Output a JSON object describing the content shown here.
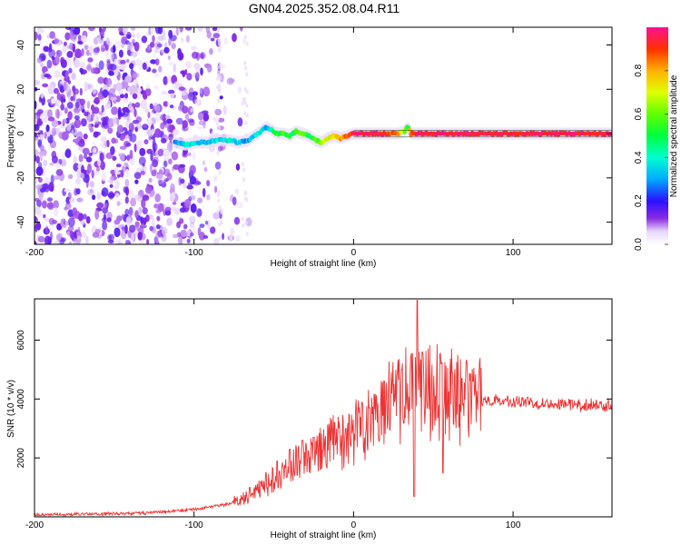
{
  "title": "GN04.2025.352.08.04.R11",
  "chart_data": [
    {
      "type": "heatmap",
      "name": "spectrogram",
      "xlabel": "Height of straight line (km)",
      "ylabel": "Frequency (Hz)",
      "xlim": [
        -200,
        162
      ],
      "ylim": [
        -50,
        48
      ],
      "xticks": [
        -200,
        -100,
        0,
        100
      ],
      "yticks": [
        -40,
        -20,
        0,
        20,
        40
      ],
      "grid": false,
      "colorbar": {
        "label": "Normalized spectral amplitude",
        "range": [
          0,
          1
        ],
        "ticks": [
          0.0,
          0.2,
          0.4,
          0.6,
          0.8
        ],
        "tick_labels": [
          "0.0",
          "0.2",
          "0.4",
          "0.6",
          "0.8"
        ]
      },
      "trace_points": {
        "x": [
          -112,
          -105,
          -98,
          -92,
          -85,
          -78,
          -72,
          -66,
          -62,
          -58,
          -55,
          -52,
          -48,
          -44,
          -40,
          -36,
          -32,
          -28,
          -24,
          -20,
          -16,
          -12,
          -8,
          -4,
          0,
          10,
          20,
          28,
          32,
          34,
          36,
          40,
          50,
          60,
          80,
          100,
          130,
          162
        ],
        "y": [
          -4,
          -5,
          -4,
          -4,
          -3,
          -3,
          -4,
          -3,
          -1,
          1,
          3,
          2,
          0,
          0,
          -1,
          1,
          0,
          -1,
          -3,
          -4,
          -2,
          -1,
          -2,
          -1,
          0,
          0,
          0,
          0,
          1,
          3,
          0,
          0,
          0,
          0,
          0,
          0,
          0,
          0
        ],
        "amplitude": [
          0.25,
          0.4,
          0.35,
          0.3,
          0.35,
          0.4,
          0.35,
          0.3,
          0.35,
          0.4,
          0.3,
          0.4,
          0.5,
          0.55,
          0.5,
          0.55,
          0.6,
          0.5,
          0.55,
          0.6,
          0.7,
          0.75,
          0.8,
          0.85,
          0.95,
          0.95,
          0.95,
          0.85,
          0.6,
          0.5,
          0.9,
          0.95,
          0.95,
          0.95,
          0.95,
          0.95,
          0.95,
          0.95
        ]
      }
    },
    {
      "type": "line",
      "name": "snr",
      "color": "#ee3333",
      "xlabel": "Height of straight line (km)",
      "ylabel": "SNR (10 * v/v)",
      "xlim": [
        -200,
        162
      ],
      "ylim": [
        0,
        7400
      ],
      "xticks": [
        -200,
        -100,
        0,
        100
      ],
      "yticks": [
        2000,
        4000,
        6000
      ],
      "grid": false,
      "series": [
        {
          "name": "SNR",
          "x": [
            -200,
            -190,
            -180,
            -170,
            -160,
            -150,
            -140,
            -130,
            -120,
            -110,
            -100,
            -90,
            -80,
            -75,
            -70,
            -65,
            -60,
            -55,
            -50,
            -45,
            -40,
            -35,
            -30,
            -25,
            -20,
            -15,
            -10,
            -5,
            0,
            5,
            10,
            15,
            20,
            25,
            30,
            35,
            38,
            40,
            42,
            45,
            50,
            55,
            60,
            65,
            70,
            75,
            80,
            90,
            100,
            110,
            120,
            130,
            140,
            150,
            162
          ],
          "y": [
            60,
            70,
            80,
            90,
            100,
            110,
            120,
            140,
            160,
            200,
            260,
            320,
            420,
            500,
            600,
            700,
            900,
            1100,
            1300,
            1500,
            1650,
            1800,
            1950,
            2100,
            2300,
            2450,
            2550,
            2700,
            2900,
            3150,
            3350,
            3550,
            3750,
            3950,
            4150,
            4300,
            4350,
            4450,
            4400,
            4450,
            4350,
            4250,
            4200,
            4100,
            4050,
            4000,
            3950,
            3950,
            3900,
            3900,
            3850,
            3850,
            3800,
            3800,
            3780
          ]
        }
      ],
      "spikes": [
        {
          "x": -65,
          "y": 1000
        },
        {
          "x": -55,
          "y": 1500
        },
        {
          "x": -48,
          "y": 1900
        },
        {
          "x": -40,
          "y": 2300
        },
        {
          "x": -32,
          "y": 2600
        },
        {
          "x": -25,
          "y": 2700
        },
        {
          "x": -12,
          "y": 3200
        },
        {
          "x": -5,
          "y": 3000
        },
        {
          "x": 10,
          "y": 3700
        },
        {
          "x": 30,
          "y": 5000
        },
        {
          "x": 38,
          "y": 700
        },
        {
          "x": 40,
          "y": 7350
        },
        {
          "x": 43,
          "y": 5600
        },
        {
          "x": 55,
          "y": 5200
        },
        {
          "x": 56,
          "y": 1500
        },
        {
          "x": 62,
          "y": 4900
        },
        {
          "x": 68,
          "y": 4700
        },
        {
          "x": 75,
          "y": 4600
        }
      ]
    }
  ]
}
